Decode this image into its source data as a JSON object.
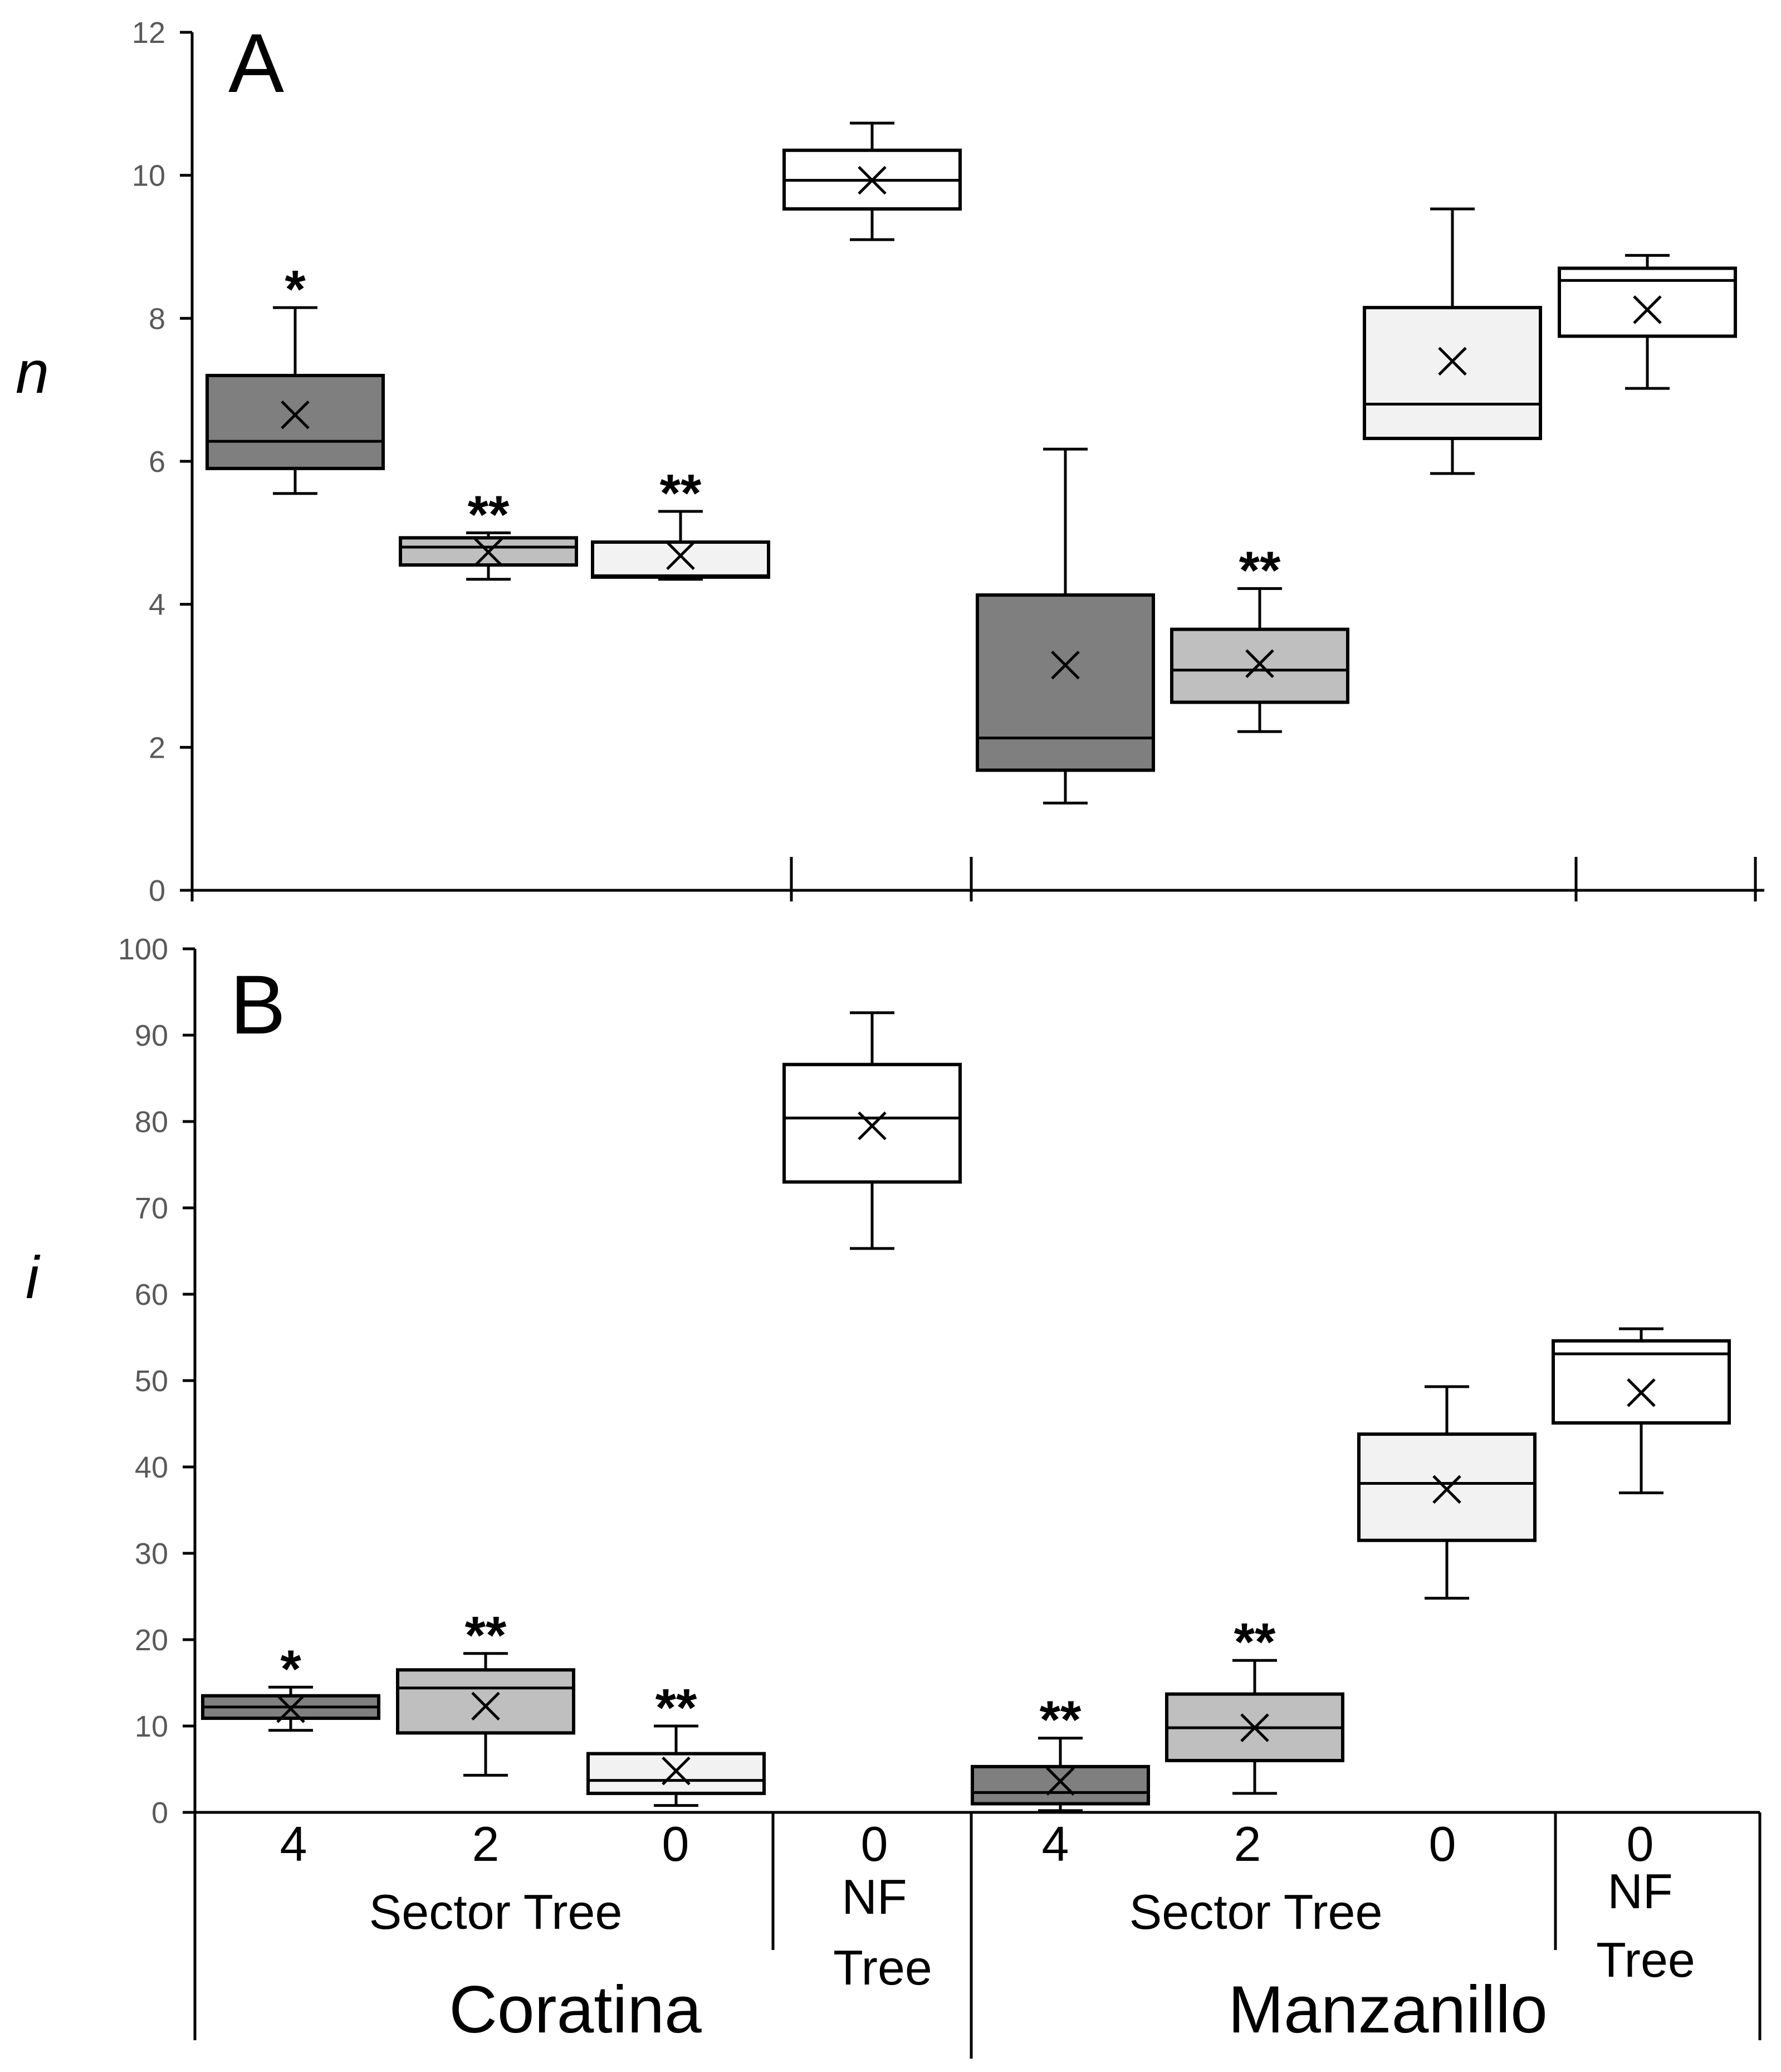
{
  "colors": {
    "sector4": "#7f7f7f",
    "sector2": "#bfbfbf",
    "sector0": "#f2f2f2",
    "nf": "#ffffff",
    "ink": "#000000",
    "tick": "#595959"
  },
  "chart_data": [
    {
      "type": "boxplot",
      "panel": "A",
      "ylabel": "n",
      "ylim": [
        0,
        12
      ],
      "yticks": [
        "0",
        "2",
        "4",
        "6",
        "8",
        "10",
        "12"
      ],
      "boxes": [
        {
          "cultivar": "Coratina",
          "group": "Sector Tree",
          "category": "4",
          "min": 5.55,
          "q1": 5.9,
          "median": 6.28,
          "q3": 7.2,
          "max": 8.15,
          "mean": 6.65,
          "annotation": "*"
        },
        {
          "cultivar": "Coratina",
          "group": "Sector Tree",
          "category": "2",
          "min": 4.35,
          "q1": 4.55,
          "median": 4.8,
          "q3": 4.93,
          "max": 5.0,
          "mean": 4.73,
          "annotation": "**"
        },
        {
          "cultivar": "Coratina",
          "group": "Sector Tree",
          "category": "0",
          "min": 4.35,
          "q1": 4.38,
          "median": 4.4,
          "q3": 4.87,
          "max": 5.3,
          "mean": 4.68,
          "annotation": "**"
        },
        {
          "cultivar": "Coratina",
          "group": "NF Tree",
          "category": "0",
          "min": 9.1,
          "q1": 9.53,
          "median": 9.93,
          "q3": 10.35,
          "max": 10.73,
          "mean": 9.93,
          "annotation": ""
        },
        {
          "cultivar": "Manzanillo",
          "group": "Sector Tree",
          "category": "4",
          "min": 1.22,
          "q1": 1.68,
          "median": 2.13,
          "q3": 4.13,
          "max": 6.17,
          "mean": 3.15,
          "annotation": ""
        },
        {
          "cultivar": "Manzanillo",
          "group": "Sector Tree",
          "category": "2",
          "min": 2.22,
          "q1": 2.63,
          "median": 3.08,
          "q3": 3.65,
          "max": 4.22,
          "mean": 3.17,
          "annotation": "**"
        },
        {
          "cultivar": "Manzanillo",
          "group": "Sector Tree",
          "category": "0",
          "min": 5.83,
          "q1": 6.32,
          "median": 6.8,
          "q3": 8.15,
          "max": 9.53,
          "mean": 7.4,
          "annotation": ""
        },
        {
          "cultivar": "Manzanillo",
          "group": "NF Tree",
          "category": "0",
          "min": 7.02,
          "q1": 7.75,
          "median": 8.53,
          "q3": 8.7,
          "max": 8.88,
          "mean": 8.12,
          "annotation": ""
        }
      ]
    },
    {
      "type": "boxplot",
      "panel": "B",
      "ylabel": "i",
      "ylim": [
        0,
        100
      ],
      "yticks": [
        "0",
        "10",
        "20",
        "30",
        "40",
        "50",
        "60",
        "70",
        "80",
        "90",
        "100"
      ],
      "boxes": [
        {
          "cultivar": "Coratina",
          "group": "Sector Tree",
          "category": "4",
          "min": 9.5,
          "q1": 10.9,
          "median": 12.2,
          "q3": 13.5,
          "max": 14.5,
          "mean": 12.0,
          "annotation": "*"
        },
        {
          "cultivar": "Coratina",
          "group": "Sector Tree",
          "category": "2",
          "min": 4.3,
          "q1": 9.2,
          "median": 14.4,
          "q3": 16.5,
          "max": 18.4,
          "mean": 12.3,
          "annotation": "**"
        },
        {
          "cultivar": "Coratina",
          "group": "Sector Tree",
          "category": "0",
          "min": 0.8,
          "q1": 2.2,
          "median": 3.7,
          "q3": 6.8,
          "max": 10.0,
          "mean": 4.8,
          "annotation": "**"
        },
        {
          "cultivar": "Coratina",
          "group": "NF Tree",
          "category": "0",
          "min": 65.3,
          "q1": 73.0,
          "median": 80.4,
          "q3": 86.6,
          "max": 92.6,
          "mean": 79.5,
          "annotation": ""
        },
        {
          "cultivar": "Manzanillo",
          "group": "Sector Tree",
          "category": "4",
          "min": 0.2,
          "q1": 1.0,
          "median": 2.3,
          "q3": 5.3,
          "max": 8.6,
          "mean": 3.6,
          "annotation": "**"
        },
        {
          "cultivar": "Manzanillo",
          "group": "Sector Tree",
          "category": "2",
          "min": 2.2,
          "q1": 6.0,
          "median": 9.8,
          "q3": 13.7,
          "max": 17.6,
          "mean": 9.8,
          "annotation": "**"
        },
        {
          "cultivar": "Manzanillo",
          "group": "Sector Tree",
          "category": "0",
          "min": 24.8,
          "q1": 31.5,
          "median": 38.1,
          "q3": 43.8,
          "max": 49.3,
          "mean": 37.4,
          "annotation": ""
        },
        {
          "cultivar": "Manzanillo",
          "group": "NF Tree",
          "category": "0",
          "min": 37.0,
          "q1": 45.1,
          "median": 53.1,
          "q3": 54.6,
          "max": 56.0,
          "mean": 48.6,
          "annotation": ""
        }
      ]
    }
  ],
  "xaxis": {
    "categories": [
      "4",
      "2",
      "0",
      "0",
      "4",
      "2",
      "0",
      "0"
    ],
    "groups": [
      {
        "label": "Sector Tree"
      },
      {
        "label_line1": "NF",
        "label_line2": "Tree"
      },
      {
        "label": "Sector Tree"
      },
      {
        "label_line1": "NF",
        "label_line2": "Tree"
      }
    ],
    "cultivars": [
      "Coratina",
      "Manzanillo"
    ]
  }
}
